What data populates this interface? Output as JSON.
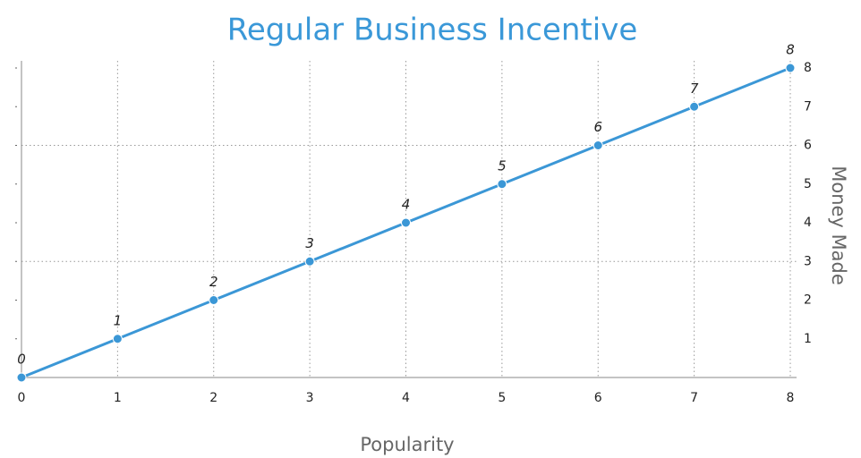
{
  "chart_data": {
    "type": "line",
    "title": "Regular Business Incentive",
    "x_label": "Popularity",
    "y_label": "Money Made",
    "x": [
      0,
      1,
      2,
      3,
      4,
      5,
      6,
      7,
      8
    ],
    "series": [
      {
        "name": "Money Made",
        "color": "#3b97d6",
        "values": [
          0,
          1,
          2,
          3,
          4,
          5,
          6,
          7,
          8
        ]
      }
    ],
    "xlim": [
      0,
      8
    ],
    "ylim": [
      0,
      8
    ],
    "xticks": [
      0,
      1,
      2,
      3,
      4,
      5,
      6,
      7,
      8
    ],
    "yticks": [
      1,
      2,
      3,
      4,
      5,
      6,
      7,
      8
    ],
    "x_grid": true,
    "y_grid_at": [
      3,
      6
    ],
    "y_axis_side": "right"
  }
}
